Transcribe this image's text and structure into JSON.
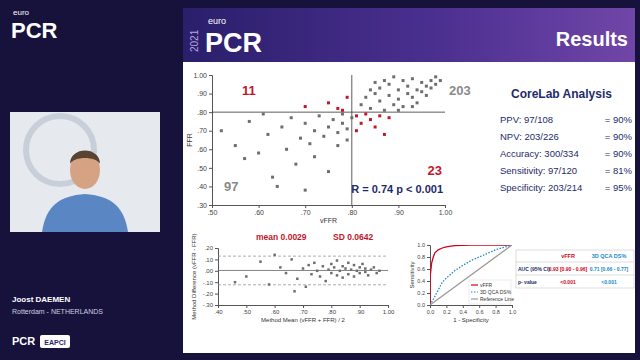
{
  "page": {
    "logo": {
      "small": "euro",
      "large": "PCR"
    },
    "speaker": {
      "name": "Joost DAEMEN",
      "place": "Rotterdam - NETHERLANDS"
    },
    "footer": [
      "PCR",
      "EAPCI"
    ],
    "slide": {
      "year": "2021",
      "logo_small": "euro",
      "logo_large": "PCR",
      "title": "Results"
    },
    "stats": {
      "title": "CoreLab Analysis",
      "rows": [
        {
          "label": "PPV: 97/108",
          "result": "= 90%"
        },
        {
          "label": "NPV: 203/226",
          "result": "= 90%"
        },
        {
          "label": "Accuracy: 300/334",
          "result": "= 90%"
        },
        {
          "label": "Sensitivity: 97/120",
          "result": "= 81%"
        },
        {
          "label": "Specificity: 203/214",
          "result": "= 95%"
        }
      ]
    }
  },
  "chart_data": [
    {
      "type": "scatter",
      "x_label": "vFFR",
      "y_label": "FFR",
      "xlim": [
        0.5,
        1.0
      ],
      "ylim": [
        0.3,
        1.0
      ],
      "xticks": [
        {
          "value": 0.5,
          "label": ".50"
        },
        {
          "value": 0.6,
          "label": ".60"
        },
        {
          "value": 0.7,
          "label": ".70"
        },
        {
          "value": 0.8,
          "label": ".80"
        },
        {
          "value": 0.9,
          "label": ".90"
        },
        {
          "value": 1.0,
          "label": "1.00"
        }
      ],
      "yticks": [
        {
          "value": 0.3,
          "label": ".30"
        },
        {
          "value": 0.4,
          "label": ".40"
        },
        {
          "value": 0.5,
          "label": ".50"
        },
        {
          "value": 0.6,
          "label": ".60"
        },
        {
          "value": 0.7,
          "label": ".70"
        },
        {
          "value": 0.8,
          "label": ".80"
        },
        {
          "value": 0.9,
          "label": ".90"
        },
        {
          "value": 1.0,
          "label": "1.00"
        }
      ],
      "series": [
        {
          "color": "#6e6e6e",
          "marker": "square",
          "x": [
            0.82,
            0.83,
            0.84,
            0.85,
            0.86,
            0.86,
            0.87,
            0.88,
            0.88,
            0.89,
            0.9,
            0.9,
            0.91,
            0.91,
            0.92,
            0.92,
            0.93,
            0.93,
            0.94,
            0.94,
            0.95,
            0.95,
            0.96,
            0.96,
            0.97,
            0.97,
            0.98,
            0.98,
            0.85,
            0.89,
            0.84,
            0.9,
            0.99,
            0.87,
            0.93,
            0.52,
            0.55,
            0.58,
            0.6,
            0.62,
            0.63,
            0.65,
            0.66,
            0.67,
            0.68,
            0.69,
            0.7,
            0.71,
            0.72,
            0.72,
            0.73,
            0.74,
            0.75,
            0.75,
            0.76,
            0.77,
            0.77,
            0.78,
            0.78,
            0.79,
            0.79,
            0.8,
            0.64,
            0.7,
            0.57,
            0.61
          ],
          "values": [
            0.84,
            0.88,
            0.82,
            0.9,
            0.86,
            0.93,
            0.81,
            0.89,
            0.95,
            0.84,
            0.92,
            0.87,
            0.97,
            0.83,
            0.9,
            0.94,
            0.88,
            0.98,
            0.92,
            0.85,
            0.96,
            0.91,
            0.94,
            0.89,
            0.97,
            0.93,
            0.99,
            0.95,
            0.96,
            0.99,
            0.92,
            0.81,
            0.97,
            0.97,
            0.83,
            0.7,
            0.62,
            0.75,
            0.58,
            0.68,
            0.45,
            0.72,
            0.6,
            0.77,
            0.52,
            0.66,
            0.74,
            0.63,
            0.7,
            0.56,
            0.78,
            0.67,
            0.72,
            0.48,
            0.76,
            0.69,
            0.62,
            0.74,
            0.79,
            0.71,
            0.65,
            0.77,
            0.4,
            0.38,
            0.55,
            0.79
          ]
        },
        {
          "color": "#c0182a",
          "marker": "square",
          "x": [
            0.7,
            0.75,
            0.77,
            0.79,
            0.78,
            0.81,
            0.82,
            0.83,
            0.84,
            0.85,
            0.86,
            0.88,
            0.81,
            0.87
          ],
          "values": [
            0.83,
            0.85,
            0.82,
            0.88,
            0.81,
            0.78,
            0.74,
            0.79,
            0.76,
            0.72,
            0.78,
            0.77,
            0.7,
            0.68
          ]
        }
      ],
      "cutoffs": {
        "x": 0.8,
        "y": 0.8
      },
      "quadrant_counts": [
        {
          "value": 11,
          "color": "#c0182a"
        },
        {
          "value": 203,
          "color": "#8a8a8a"
        },
        {
          "value": 97,
          "color": "#8a8a8a"
        },
        {
          "value": 23,
          "color": "#c0182a"
        }
      ],
      "annotation": "R = 0.74 p < 0.001"
    },
    {
      "type": "scatter",
      "x_label": "Method Mean (vFFR + FFR) / 2",
      "y_label": "Method Difference (vFFR - FFR)",
      "xlim": [
        0.4,
        1.0
      ],
      "ylim": [
        -0.3,
        0.2
      ],
      "xticks": [
        {
          "value": 0.4,
          "label": ".40"
        },
        {
          "value": 0.5,
          "label": ".50"
        },
        {
          "value": 0.6,
          "label": ".60"
        },
        {
          "value": 0.7,
          "label": ".70"
        },
        {
          "value": 0.8,
          "label": ".80"
        },
        {
          "value": 0.9,
          "label": ".90"
        },
        {
          "value": 1.0,
          "label": "1.00"
        }
      ],
      "yticks": [
        {
          "value": -0.3,
          "label": "-.30"
        },
        {
          "value": -0.2,
          "label": "-.20"
        },
        {
          "value": -0.1,
          "label": "-.10"
        },
        {
          "value": 0,
          "label": ".00"
        },
        {
          "value": 0.1,
          "label": ".10"
        },
        {
          "value": 0.2,
          "label": ".20"
        }
      ],
      "series": [
        {
          "color": "#6e6e6e",
          "marker": "square",
          "x": [
            0.5,
            0.55,
            0.58,
            0.62,
            0.64,
            0.66,
            0.68,
            0.7,
            0.71,
            0.72,
            0.73,
            0.74,
            0.75,
            0.76,
            0.77,
            0.78,
            0.79,
            0.8,
            0.8,
            0.81,
            0.82,
            0.82,
            0.83,
            0.84,
            0.84,
            0.85,
            0.86,
            0.86,
            0.87,
            0.88,
            0.88,
            0.89,
            0.9,
            0.9,
            0.91,
            0.92,
            0.92,
            0.93,
            0.94,
            0.95,
            0.96,
            0.97,
            0.67,
            0.6,
            0.46
          ],
          "values": [
            -0.05,
            0.08,
            -0.12,
            0.03,
            -0.02,
            0.1,
            -0.07,
            0.02,
            -0.14,
            0.05,
            -0.03,
            0.07,
            0,
            -0.05,
            0.04,
            -0.09,
            0.01,
            0.06,
            -0.02,
            0.03,
            -0.04,
            0.09,
            0,
            -0.06,
            0.04,
            0.02,
            -0.03,
            0.07,
            0.01,
            -0.05,
            0.05,
            0,
            0.03,
            -0.02,
            0.06,
            -0.01,
            0.02,
            -0.04,
            0.01,
            0.03,
            -0.02,
            0,
            -0.18,
            0.14,
            -0.1
          ]
        }
      ],
      "mean": 0.0029,
      "limits": [
        -0.1229,
        0.1287
      ],
      "annotations": [
        "mean 0.0029",
        "SD 0.0642"
      ]
    },
    {
      "type": "line",
      "x_label": "1 - Specificity",
      "y_label": "Sensitivity",
      "xlim": [
        0,
        1
      ],
      "ylim": [
        0,
        1
      ],
      "xticks": [
        {
          "value": 0,
          "label": "0.0"
        },
        0.2,
        0.4,
        0.6,
        0.8,
        {
          "value": 1,
          "label": "1.0"
        }
      ],
      "yticks": [
        {
          "value": 0,
          "label": "0.0"
        },
        0.2,
        0.4,
        0.6,
        0.8,
        {
          "value": 1,
          "label": "1.0"
        }
      ],
      "legend": "lower right",
      "series": [
        {
          "name": "vFFR",
          "color": "#d0021b",
          "line_style": "solid",
          "x": [
            0,
            0,
            0.02,
            0.04,
            0.06,
            0.1,
            0.15,
            0.2,
            0.3,
            0.5,
            0.7,
            1
          ],
          "values": [
            0,
            0.45,
            0.7,
            0.8,
            0.87,
            0.92,
            0.95,
            0.97,
            0.99,
            1,
            1,
            1
          ]
        },
        {
          "name": "3D QCA DS%",
          "color": "#1e88c8",
          "line_style": "dotted",
          "x": [
            0,
            0.05,
            0.1,
            0.15,
            0.2,
            0.3,
            0.4,
            0.5,
            0.6,
            0.7,
            0.8,
            0.9,
            1
          ],
          "values": [
            0,
            0.12,
            0.25,
            0.38,
            0.45,
            0.57,
            0.66,
            0.74,
            0.8,
            0.86,
            0.92,
            0.96,
            1
          ]
        },
        {
          "name": "Reference Line",
          "color": "#9a9a9a",
          "line_style": "solid",
          "x": [
            0,
            1
          ],
          "values": [
            0,
            1
          ]
        }
      ],
      "table": {
        "columns": [
          {
            "name": "vFFR",
            "color": "#d0021b"
          },
          {
            "name": "3D QCA DS%",
            "color": "#1e88c8"
          }
        ],
        "rows": [
          {
            "label": "AUC (95% CI)",
            "cells": [
              "0.93 [0.90 - 0.96]",
              "0.71 [0.66 - 0.77]"
            ]
          },
          {
            "label": "p- value",
            "cells": [
              "<0.001",
              "<0.001"
            ]
          }
        ]
      }
    }
  ]
}
